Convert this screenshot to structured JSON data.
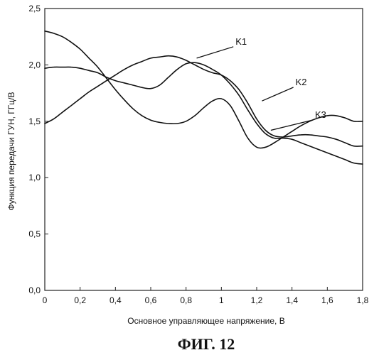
{
  "chart_data": {
    "type": "line",
    "title": "",
    "xlabel": "Основное управляющее напряжение, В",
    "ylabel": "Функция передачи ГУН, ГГц/В",
    "xlim": [
      0,
      1.8
    ],
    "ylim": [
      0,
      2.5
    ],
    "grid": false,
    "x_ticks": [
      0,
      0.2,
      0.4,
      0.6,
      0.8,
      1,
      1.2,
      1.4,
      1.6,
      1.8
    ],
    "x_tick_labels": [
      "0",
      "0,2",
      "0,4",
      "0,6",
      "0,8",
      "1",
      "1,2",
      "1,4",
      "1,6",
      "1,8"
    ],
    "y_ticks": [
      0,
      0.5,
      1,
      1.5,
      2,
      2.5
    ],
    "y_tick_labels": [
      "0,0",
      "0,5",
      "1,0",
      "1,5",
      "2,0",
      "2,5"
    ],
    "series": [
      {
        "name": "K1",
        "x": [
          0,
          0.05,
          0.1,
          0.15,
          0.2,
          0.25,
          0.3,
          0.35,
          0.4,
          0.45,
          0.5,
          0.55,
          0.6,
          0.65,
          0.7,
          0.75,
          0.8,
          0.85,
          0.9,
          0.95,
          1.0,
          1.05,
          1.1,
          1.15,
          1.2,
          1.25,
          1.3,
          1.35,
          1.4,
          1.45,
          1.5,
          1.55,
          1.6,
          1.65,
          1.7,
          1.75,
          1.8
        ],
        "y": [
          1.48,
          1.52,
          1.58,
          1.64,
          1.7,
          1.76,
          1.81,
          1.86,
          1.91,
          1.96,
          2.0,
          2.03,
          2.06,
          2.07,
          2.08,
          2.07,
          2.04,
          2.0,
          1.96,
          1.93,
          1.91,
          1.86,
          1.78,
          1.66,
          1.52,
          1.42,
          1.37,
          1.36,
          1.37,
          1.38,
          1.38,
          1.37,
          1.36,
          1.34,
          1.31,
          1.28,
          1.28
        ]
      },
      {
        "name": "K2",
        "x": [
          0,
          0.05,
          0.1,
          0.15,
          0.2,
          0.25,
          0.3,
          0.35,
          0.4,
          0.45,
          0.5,
          0.55,
          0.6,
          0.65,
          0.7,
          0.75,
          0.8,
          0.85,
          0.9,
          0.95,
          1.0,
          1.05,
          1.1,
          1.15,
          1.2,
          1.25,
          1.3,
          1.35,
          1.4,
          1.45,
          1.5,
          1.55,
          1.6,
          1.65,
          1.7,
          1.75,
          1.8
        ],
        "y": [
          1.97,
          1.98,
          1.98,
          1.98,
          1.97,
          1.95,
          1.93,
          1.89,
          1.86,
          1.84,
          1.82,
          1.8,
          1.79,
          1.82,
          1.89,
          1.96,
          2.01,
          2.02,
          2.0,
          1.96,
          1.91,
          1.83,
          1.73,
          1.6,
          1.48,
          1.39,
          1.35,
          1.35,
          1.34,
          1.31,
          1.28,
          1.25,
          1.22,
          1.19,
          1.16,
          1.13,
          1.12
        ]
      },
      {
        "name": "K3",
        "x": [
          0,
          0.05,
          0.1,
          0.15,
          0.2,
          0.25,
          0.3,
          0.35,
          0.4,
          0.45,
          0.5,
          0.55,
          0.6,
          0.65,
          0.7,
          0.75,
          0.8,
          0.85,
          0.9,
          0.95,
          1.0,
          1.05,
          1.1,
          1.15,
          1.2,
          1.25,
          1.3,
          1.35,
          1.4,
          1.45,
          1.5,
          1.55,
          1.6,
          1.65,
          1.7,
          1.75,
          1.8
        ],
        "y": [
          2.3,
          2.28,
          2.25,
          2.2,
          2.14,
          2.06,
          1.98,
          1.88,
          1.78,
          1.69,
          1.61,
          1.55,
          1.51,
          1.49,
          1.48,
          1.48,
          1.5,
          1.55,
          1.62,
          1.68,
          1.7,
          1.64,
          1.5,
          1.35,
          1.27,
          1.27,
          1.31,
          1.36,
          1.41,
          1.46,
          1.5,
          1.53,
          1.55,
          1.55,
          1.53,
          1.5,
          1.5
        ]
      }
    ],
    "annotations": [
      {
        "text": "K1",
        "x": 1.08,
        "y": 2.18,
        "points_to": [
          0.86,
          2.06
        ]
      },
      {
        "text": "K2",
        "x": 1.42,
        "y": 1.82,
        "points_to": [
          1.23,
          1.68
        ]
      },
      {
        "text": "K3",
        "x": 1.53,
        "y": 1.53,
        "points_to": [
          1.28,
          1.42
        ]
      }
    ],
    "caption": "ФИГ. 12"
  }
}
